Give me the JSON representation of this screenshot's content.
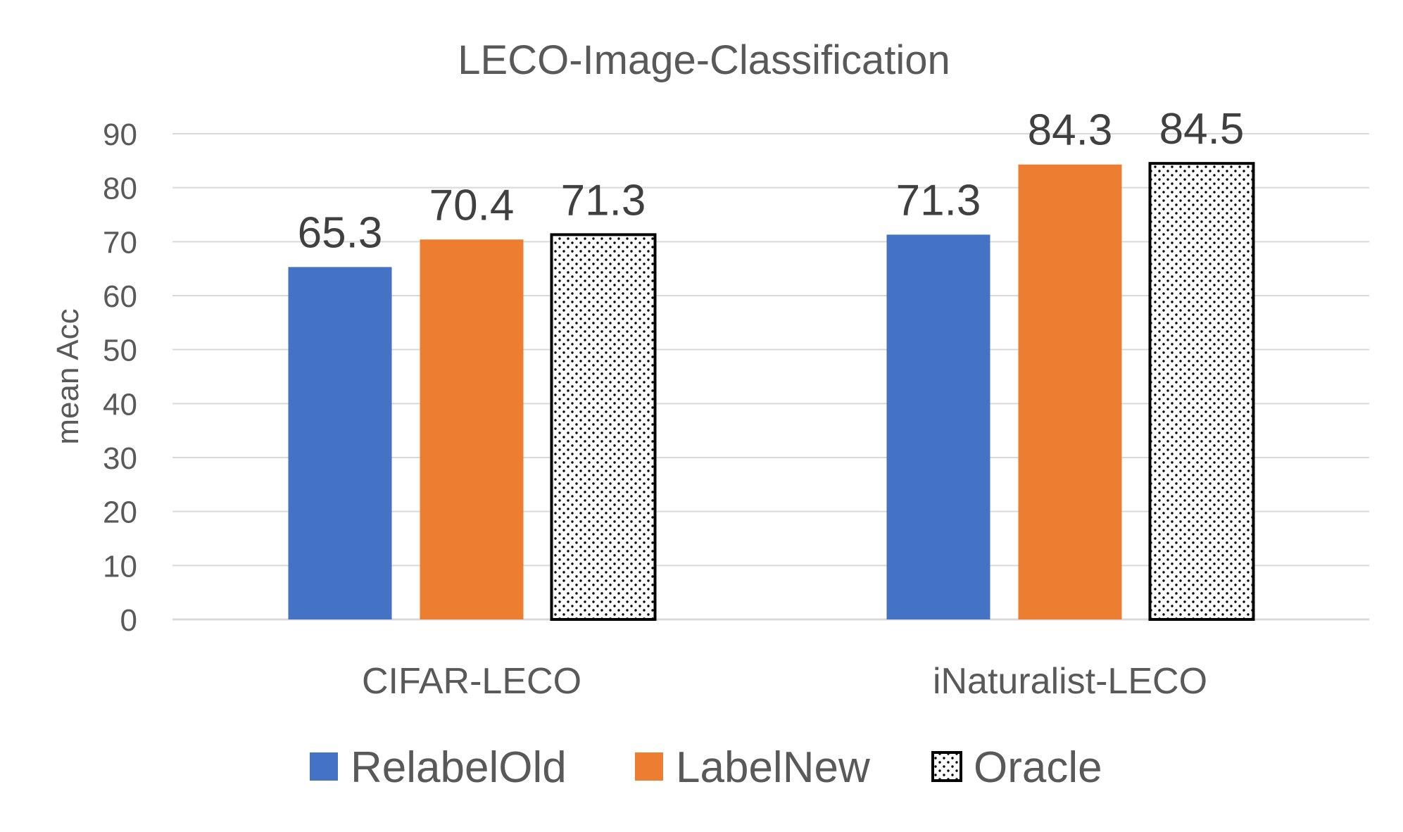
{
  "chart_data": {
    "type": "bar",
    "title": "LECO-Image-Classification",
    "xlabel": "",
    "ylabel": "mean Acc",
    "ylim": [
      0,
      90
    ],
    "yticks": [
      0,
      10,
      20,
      30,
      40,
      50,
      60,
      70,
      80,
      90
    ],
    "categories": [
      "CIFAR-LECO",
      "iNaturalist-LECO"
    ],
    "series": [
      {
        "name": "RelabelOld",
        "values": [
          65.3,
          71.3
        ],
        "color": "#4472C4",
        "pattern": "solid"
      },
      {
        "name": "LabelNew",
        "values": [
          70.4,
          84.3
        ],
        "color": "#ED7D31",
        "pattern": "solid"
      },
      {
        "name": "Oracle",
        "values": [
          71.3,
          84.5
        ],
        "color": "#000000",
        "pattern": "dots"
      }
    ],
    "data_labels": true,
    "grid": true,
    "legend": "bottom"
  }
}
